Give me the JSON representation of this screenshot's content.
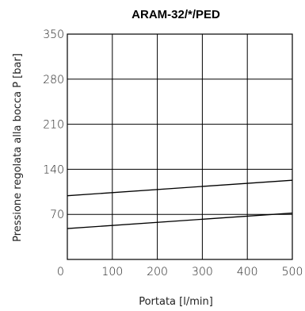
{
  "chart_data": {
    "type": "line",
    "title": "ARAM-32/*/PED",
    "xlabel": "Portata [l/min]",
    "ylabel": "Pressione regolata alla bocca P [bar]",
    "xlim": [
      0,
      500
    ],
    "ylim": [
      0,
      350
    ],
    "xticks": [
      "0",
      "100",
      "200",
      "300",
      "400",
      "500"
    ],
    "yticks": [
      "350",
      "280",
      "210",
      "140",
      "70"
    ],
    "grid": true,
    "series": [
      {
        "x": [
          0,
          500
        ],
        "y": [
          99,
          123
        ]
      },
      {
        "x": [
          0,
          500
        ],
        "y": [
          48,
          72
        ]
      }
    ]
  }
}
